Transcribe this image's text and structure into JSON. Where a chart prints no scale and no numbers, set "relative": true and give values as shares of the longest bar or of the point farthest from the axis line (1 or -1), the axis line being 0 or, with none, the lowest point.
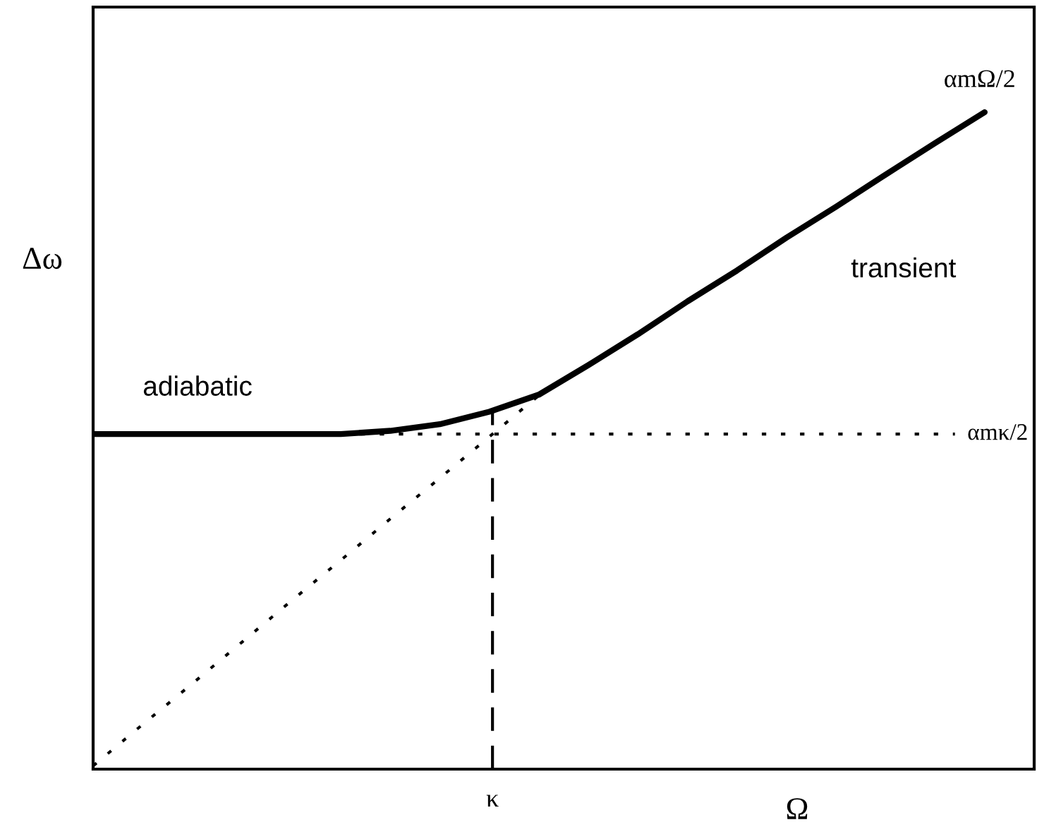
{
  "chart_data": {
    "type": "line",
    "relative": true,
    "xlabel": "Ω",
    "ylabel": "Δω",
    "categories": [
      null,
      null,
      null,
      null,
      null,
      null,
      null,
      null,
      null,
      null,
      null,
      null,
      null,
      null,
      null,
      null,
      null,
      null,
      null
    ],
    "series": [
      {
        "color": "#000000",
        "line_style": "solid",
        "values": [
          0.51,
          0.51,
          0.51,
          0.51,
          0.51,
          0.51,
          0.515,
          0.525,
          0.544,
          0.57,
          0.615,
          0.662,
          0.712,
          0.759,
          0.809,
          0.856,
          0.905,
          0.953,
          1
        ]
      },
      {
        "color": "#000000",
        "line_style": "dotted",
        "values": [
          0.005,
          0.068,
          0.13,
          0.193,
          0.256,
          0.318,
          0.381,
          0.443,
          0.506,
          0.569,
          null,
          null,
          null,
          null,
          null,
          null,
          null,
          null,
          null
        ]
      }
    ],
    "ref_lines": [
      {
        "axis": "y",
        "value": 0.51,
        "label": "αmκ/2",
        "color": "#000000",
        "line_style": "dotted"
      },
      {
        "axis": "x",
        "value": "κ",
        "label": null,
        "color": "#000000",
        "line_style": "dashed"
      }
    ],
    "annotations": [
      "adiabatic",
      "transient",
      "αmΩ/2"
    ],
    "marker": "none"
  }
}
